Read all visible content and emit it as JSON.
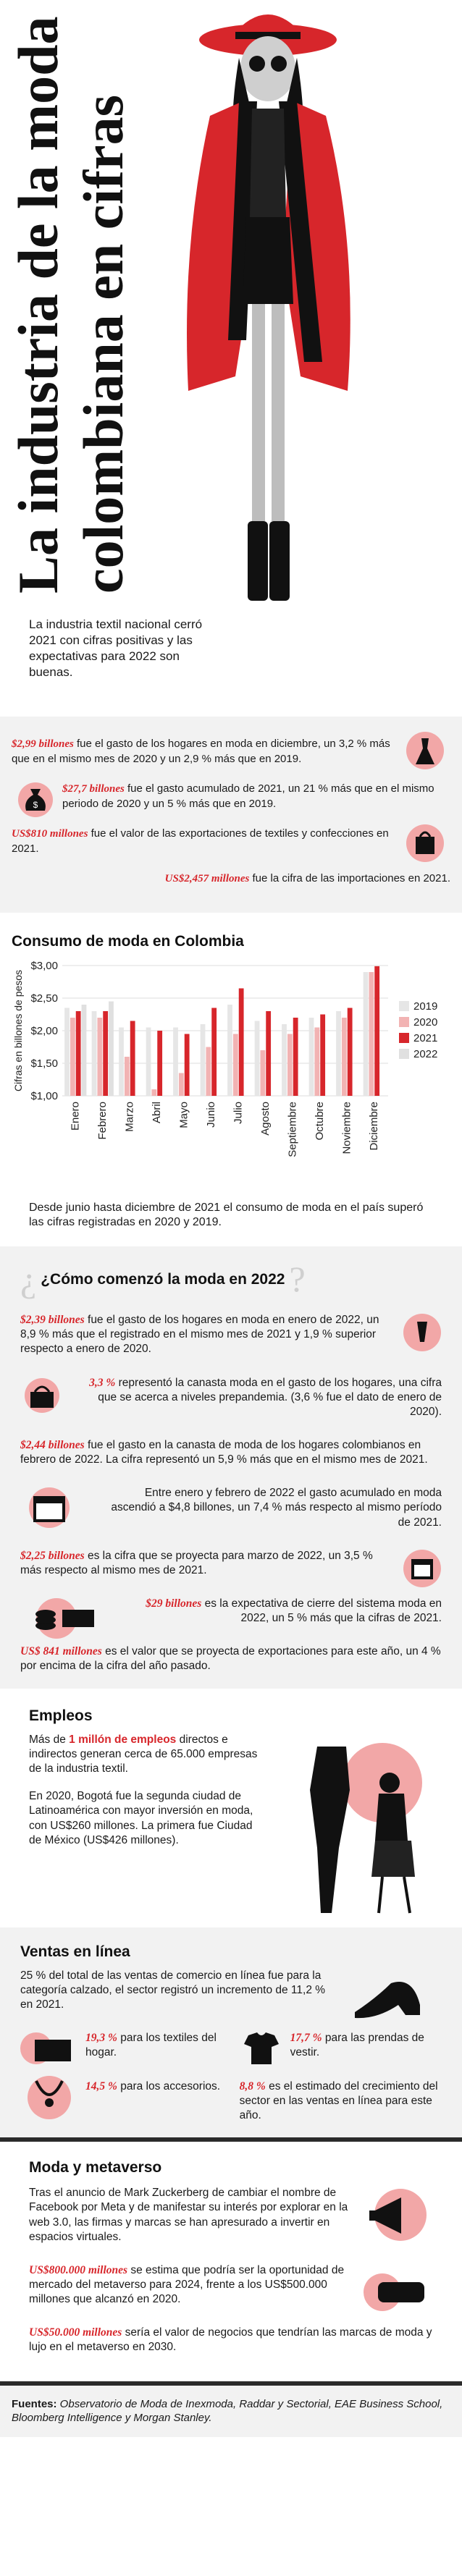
{
  "hero": {
    "title_line1": "La industria de la moda",
    "title_line2": "colombiana en cifras",
    "intro": "La industria textil nacional cerró 2021 con cifras positivas y las expectativas para 2022 son buenas."
  },
  "highlights": [
    {
      "lead": "$2,99 billones",
      "text": " fue el gasto de los hogares en moda en diciembre, un 3,2 % más que en el mismo mes de 2020 y un 2,9 % más que en 2019."
    },
    {
      "lead": "$27,7 billones",
      "text": " fue el gasto acumulado de 2021, un 21 % más que en el mismo periodo de 2020 y un 5 % más que en 2019."
    },
    {
      "lead": "US$810 millones",
      "text": " fue el valor de las exportaciones de textiles y confecciones en 2021."
    },
    {
      "lead": "US$2,457 millones",
      "text": " fue la cifra de las importaciones en 2021."
    }
  ],
  "chart_section": {
    "title": "Consumo de moda en Colombia",
    "note": "Desde junio hasta diciembre de 2021 el consumo de moda en el país superó las cifras registradas en 2020 y 2019."
  },
  "chart_data": {
    "type": "bar",
    "title": "Consumo de moda en Colombia",
    "ylabel": "Cifras en billones de pesos",
    "ylim": [
      1.0,
      3.0
    ],
    "yticks": [
      "$3,00",
      "$2,50",
      "$2,00",
      "$1,50",
      "$1,00"
    ],
    "categories": [
      "Enero",
      "Febrero",
      "Marzo",
      "Abril",
      "Mayo",
      "Junio",
      "Julio",
      "Agosto",
      "Septiembre",
      "Octubre",
      "Noviembre",
      "Diciembre"
    ],
    "series": [
      {
        "name": "2019",
        "color": "#e6e6e6",
        "values": [
          2.35,
          2.3,
          2.05,
          2.05,
          2.05,
          2.1,
          2.4,
          2.15,
          2.1,
          2.2,
          2.3,
          2.9
        ]
      },
      {
        "name": "2020",
        "color": "#f2b3b3",
        "values": [
          2.2,
          2.2,
          1.6,
          1.1,
          1.35,
          1.75,
          1.95,
          1.7,
          1.95,
          2.05,
          2.2,
          2.9
        ]
      },
      {
        "name": "2021",
        "color": "#d7262b",
        "values": [
          2.3,
          2.3,
          2.15,
          2.0,
          1.95,
          2.35,
          2.65,
          2.3,
          2.2,
          2.25,
          2.35,
          2.99
        ]
      },
      {
        "name": "2022",
        "color": "#e0e0e0",
        "values": [
          2.4,
          2.45,
          null,
          null,
          null,
          null,
          null,
          null,
          null,
          null,
          null,
          null
        ]
      }
    ],
    "legend_position": "right"
  },
  "how_started": {
    "title": "¿Cómo comenzó la moda en 2022",
    "paras": [
      {
        "lead": "$2,39 billones",
        "text": " fue el gasto de los hogares en moda en enero de 2022, un 8,9 % más que el registrado en el mismo mes de 2021 y 1,9 % superior respecto a enero de 2020."
      },
      {
        "lead": "3,3 %",
        "text": " representó la canasta moda en el gasto de los hogares, una cifra que se acerca a niveles prepandemia. (3,6 % fue el dato de enero de 2020)."
      },
      {
        "lead": "$2,44 billones",
        "text": " fue el gasto en la canasta de moda de los hogares colombianos en febrero de 2022. La cifra representó un 5,9 % más que en el mismo mes de 2021."
      },
      {
        "lead": "",
        "text": "Entre enero y febrero de 2022 el gasto acumulado en moda ascendió a $4,8 billones, un 7,4 % más respecto al mismo período de 2021."
      },
      {
        "lead": "$2,25 billones",
        "text": " es la cifra que se proyecta para marzo de 2022, un 3,5 % más respecto al mismo mes de 2021."
      },
      {
        "lead": "$29 billones",
        "text": " es la expectativa de cierre del sistema moda en 2022, un 5 % más que la cifras de 2021."
      },
      {
        "lead": "US$ 841 millones",
        "text": " es el valor que se proyecta de exportaciones para este año, un 4 % por encima de la cifra del año pasado."
      }
    ]
  },
  "employment": {
    "title": "Empleos",
    "p1_pre": "Más de ",
    "p1_lead": "1 millón de empleos",
    "p1_post": " directos e indirectos generan cerca de 65.000 empresas de la industria textil.",
    "p2": "En 2020, Bogotá fue la segunda ciudad de Latinoamérica con mayor inversión en moda, con US$260 millones. La primera fue Ciudad de México (US$426 millones)."
  },
  "online": {
    "title": "Ventas en línea",
    "p1": "25 % del total de las ventas de comercio en línea fue para la categoría calzado, el sector registró un incremento de 11,2 % en 2021.",
    "items": [
      {
        "lead": "19,3 %",
        "text": " para los textiles del hogar."
      },
      {
        "lead": "17,7 %",
        "text": " para las prendas de vestir."
      },
      {
        "lead": "14,5 %",
        "text": " para los accesorios."
      },
      {
        "lead": "8,8 %",
        "text": " es el estimado del crecimiento del sector en las ventas en línea para este año."
      }
    ]
  },
  "metaverse": {
    "title": "Moda y metaverso",
    "p1": "Tras el anuncio de Mark Zuckerberg de cambiar el nombre de Facebook por Meta y de manifestar su interés por explorar en la web 3.0, las firmas y marcas se han apresurado a invertir en espacios virtuales.",
    "p2_lead": "US$800.000 millones",
    "p2": " se estima que podría ser la oportunidad de mercado del metaverso para 2024, frente a los US$500.000 millones que alcanzó en 2020.",
    "p3_lead": "US$50.000 millones",
    "p3": " sería el valor de negocios que tendrían las marcas de moda y lujo en el metaverso en 2030."
  },
  "footer": {
    "label": "Fuentes:",
    "text": " Observatorio de Moda de Inexmoda, Raddar y Sectorial, EAE Business School, Bloomberg Intelligence y Morgan Stanley."
  },
  "colors": {
    "accent": "#d7262b",
    "band": "#f2f2f2",
    "dark": "#2b2b2b"
  }
}
